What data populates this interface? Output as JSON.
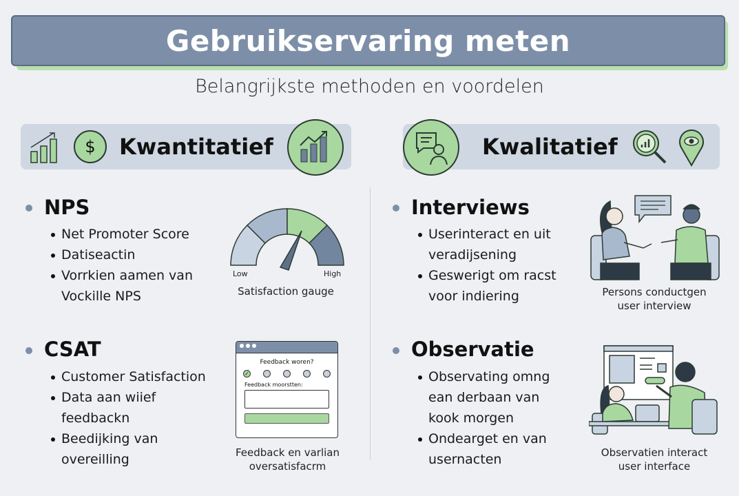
{
  "header": {
    "title": "Gebruikservaring meten",
    "subtitle": "Belangrijkste methoden en voordelen"
  },
  "colors": {
    "background": "#eef0f3",
    "title_bar": "#7d8fa8",
    "accent_green": "#a8d8a0",
    "section_bar": "#cfd7e2",
    "slate": "#6f8299"
  },
  "quantitative": {
    "title": "Kwantitatief",
    "icons": [
      "bar-chart-growth-icon",
      "dollar-coin-icon",
      "bar-chart-trend-icon"
    ],
    "nps": {
      "heading": "NPS",
      "items": [
        "Net Promoter Score",
        "Datiseactin",
        "Vorrkien aamen van Vockille NPS"
      ],
      "gauge": {
        "low_label": "Low",
        "high_label": "High",
        "caption": "Satisfaction gauge",
        "needle_fraction": 0.62
      }
    },
    "csat": {
      "heading": "CSAT",
      "items": [
        "Customer Satisfaction",
        "Data aan wiief feedbackn",
        "Beedijking van overeilling"
      ],
      "form": {
        "question": "Feedback woren?",
        "field_label": "Feedback moorstten:",
        "options": 5,
        "selected_option": 1
      },
      "caption_lines": [
        "Feedback en varlian",
        "oversatisfacrm"
      ]
    }
  },
  "qualitative": {
    "title": "Kwalitatief",
    "icons": [
      "chat-person-icon",
      "magnifier-chart-icon",
      "location-eye-icon"
    ],
    "interviews": {
      "heading": "Interviews",
      "items": [
        "Userinteract en uit veradijsening",
        "Geswerigt om racst voor indiering"
      ],
      "caption_lines": [
        "Persons conductgen",
        "user interview"
      ]
    },
    "observatie": {
      "heading": "Observatie",
      "items": [
        "Observating omng ean derbaan van kook morgen",
        "Ondearget en van usernacten"
      ],
      "caption_lines": [
        "Observatien interact",
        "user interface"
      ]
    }
  }
}
